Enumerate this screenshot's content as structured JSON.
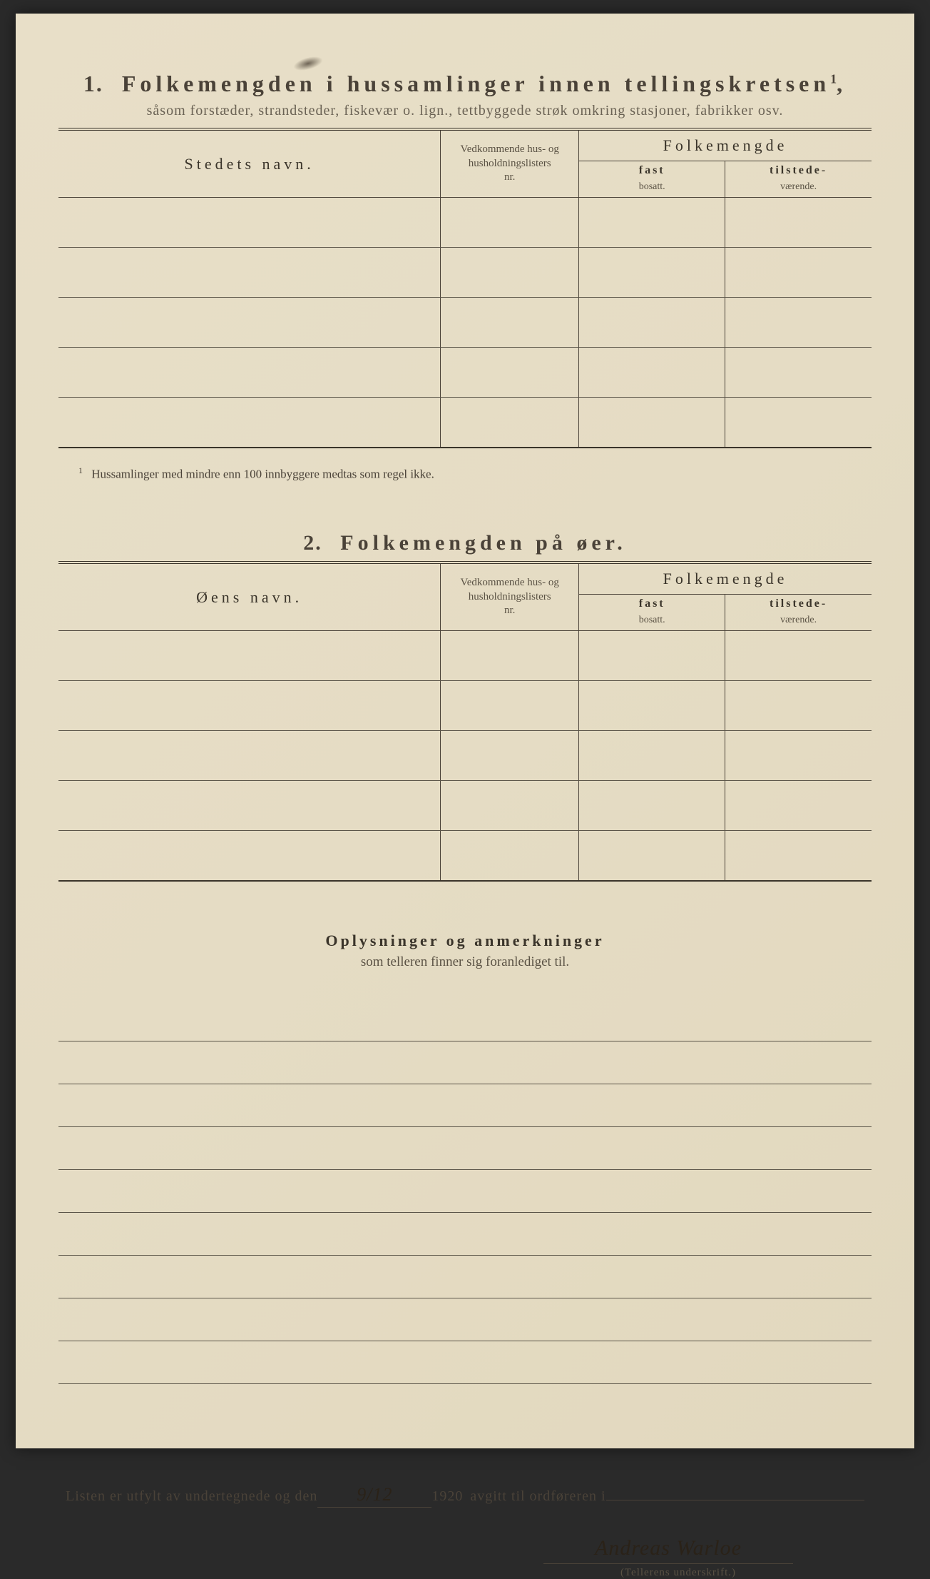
{
  "page": {
    "background_color": "#e5dcc4",
    "text_color": "#4a4238",
    "rule_color": "#5a5448"
  },
  "section1": {
    "number": "1.",
    "title": "Folkemengden i hussamlinger innen tellingskretsen",
    "superscript": "1",
    "subtitle": "såsom forstæder, strandsteder, fiskevær o. lign., tettbyggede strøk omkring stasjoner, fabrikker osv.",
    "columns": {
      "name": "Stedets navn.",
      "nr_line1": "Vedkommende hus- og",
      "nr_line2": "husholdningslisters",
      "nr_line3": "nr.",
      "folkemengde": "Folkemengde",
      "fast_line1": "fast",
      "fast_line2": "bosatt.",
      "tilstede_line1": "tilstede-",
      "tilstede_line2": "værende."
    },
    "rows": [
      {
        "name": "",
        "nr": "",
        "fast": "",
        "tilstede": ""
      },
      {
        "name": "",
        "nr": "",
        "fast": "",
        "tilstede": ""
      },
      {
        "name": "",
        "nr": "",
        "fast": "",
        "tilstede": ""
      },
      {
        "name": "",
        "nr": "",
        "fast": "",
        "tilstede": ""
      },
      {
        "name": "",
        "nr": "",
        "fast": "",
        "tilstede": ""
      }
    ],
    "footnote_num": "1",
    "footnote": "Hussamlinger med mindre enn 100 innbyggere medtas som regel ikke."
  },
  "section2": {
    "number": "2.",
    "title": "Folkemengden på øer.",
    "columns": {
      "name": "Øens navn.",
      "nr_line1": "Vedkommende hus- og",
      "nr_line2": "husholdningslisters",
      "nr_line3": "nr.",
      "folkemengde": "Folkemengde",
      "fast_line1": "fast",
      "fast_line2": "bosatt.",
      "tilstede_line1": "tilstede-",
      "tilstede_line2": "værende."
    },
    "rows": [
      {
        "name": "",
        "nr": "",
        "fast": "",
        "tilstede": ""
      },
      {
        "name": "",
        "nr": "",
        "fast": "",
        "tilstede": ""
      },
      {
        "name": "",
        "nr": "",
        "fast": "",
        "tilstede": ""
      },
      {
        "name": "",
        "nr": "",
        "fast": "",
        "tilstede": ""
      },
      {
        "name": "",
        "nr": "",
        "fast": "",
        "tilstede": ""
      }
    ]
  },
  "remarks": {
    "title": "Oplysninger og anmerkninger",
    "subtitle": "som telleren finner sig foranlediget til.",
    "line_count": 9
  },
  "signature": {
    "prefix": "Listen er utfylt av undertegnede og den",
    "date_written": "9/12",
    "year": "1920",
    "middle": "avgitt til ordføreren i",
    "place_written": "",
    "name_written": "Andreas Warloe",
    "caption": "(Tellerens underskrift.)"
  }
}
